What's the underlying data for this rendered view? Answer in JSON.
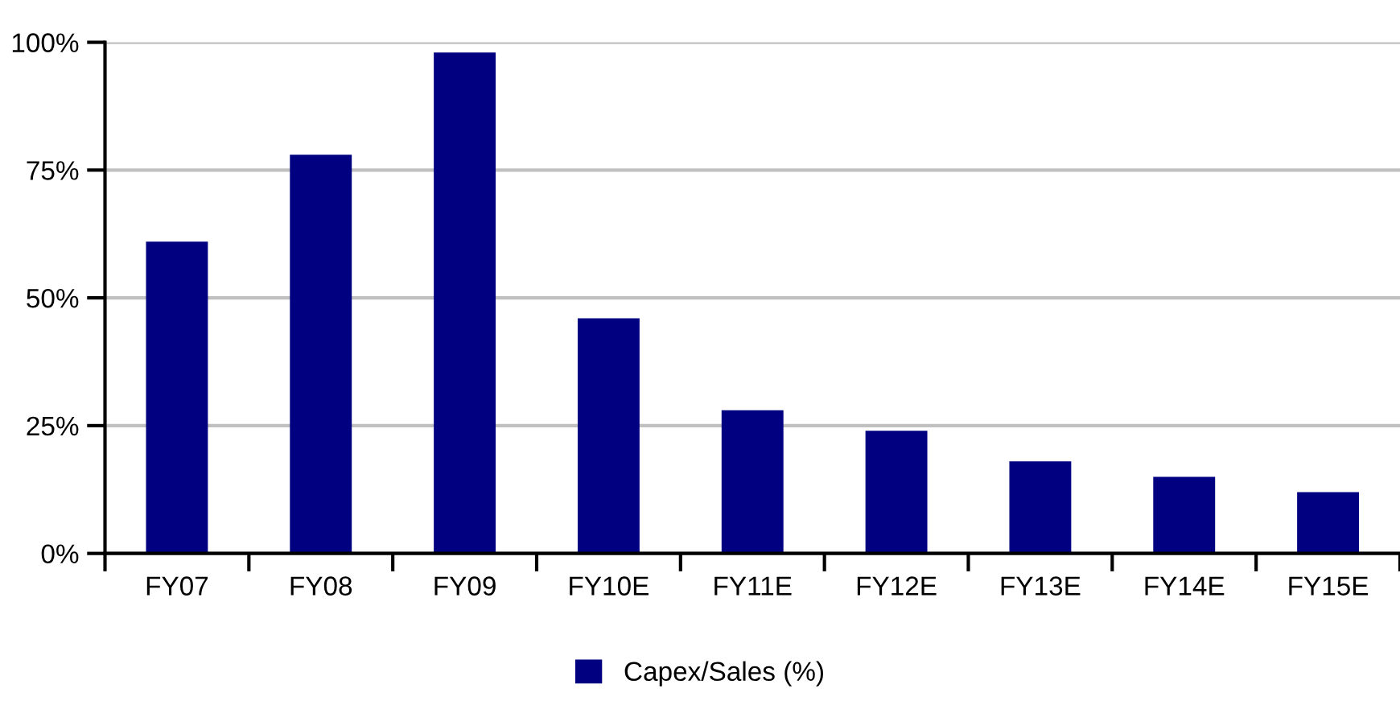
{
  "chart_data": {
    "type": "bar",
    "categories": [
      "FY07",
      "FY08",
      "FY09",
      "FY10E",
      "FY11E",
      "FY12E",
      "FY13E",
      "FY14E",
      "FY15E"
    ],
    "series": [
      {
        "name": "Capex/Sales (%)",
        "color": "#000080",
        "values": [
          61,
          78,
          98,
          46,
          28,
          24,
          18,
          15,
          12
        ]
      }
    ],
    "ylim": [
      0,
      100
    ],
    "yticks": [
      {
        "value": 0,
        "label": "0%"
      },
      {
        "value": 25,
        "label": "25%"
      },
      {
        "value": 50,
        "label": "50%"
      },
      {
        "value": 75,
        "label": "75%"
      },
      {
        "value": 100,
        "label": "100%"
      }
    ],
    "grid": "y",
    "legend": "bottom"
  }
}
